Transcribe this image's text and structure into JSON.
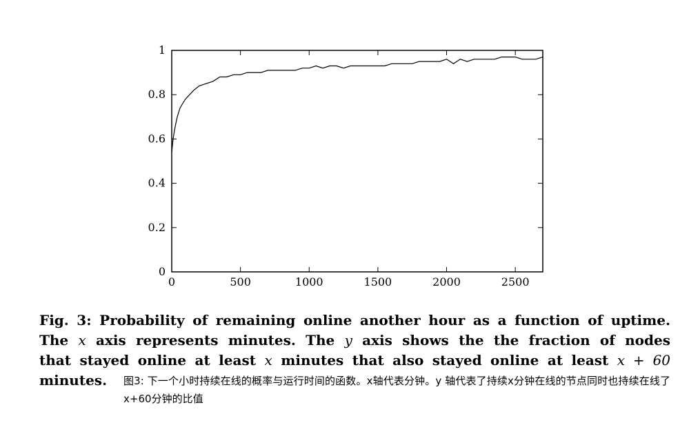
{
  "chart_data": {
    "type": "line",
    "title": "",
    "xlabel": "",
    "ylabel": "",
    "xlim": [
      0,
      2700
    ],
    "ylim": [
      0,
      1
    ],
    "x_ticks": [
      "0",
      "500",
      "1000",
      "1500",
      "2000",
      "2500"
    ],
    "y_ticks": [
      "0",
      "0.2",
      "0.4",
      "0.6",
      "0.8",
      "1"
    ],
    "grid": false,
    "series": [
      {
        "x": [
          0,
          10,
          20,
          30,
          40,
          60,
          80,
          100,
          130,
          160,
          200,
          250,
          300,
          350,
          400,
          450,
          500,
          550,
          600,
          650,
          700,
          750,
          800,
          850,
          900,
          950,
          1000,
          1050,
          1100,
          1150,
          1200,
          1250,
          1300,
          1350,
          1400,
          1450,
          1500,
          1550,
          1600,
          1650,
          1700,
          1750,
          1800,
          1850,
          1900,
          1950,
          2000,
          2050,
          2100,
          2150,
          2200,
          2250,
          2300,
          2350,
          2400,
          2450,
          2500,
          2550,
          2600,
          2650,
          2700
        ],
        "y": [
          0.54,
          0.6,
          0.64,
          0.67,
          0.7,
          0.74,
          0.76,
          0.78,
          0.8,
          0.82,
          0.84,
          0.85,
          0.86,
          0.88,
          0.88,
          0.89,
          0.89,
          0.9,
          0.9,
          0.9,
          0.91,
          0.91,
          0.91,
          0.91,
          0.91,
          0.92,
          0.92,
          0.93,
          0.92,
          0.93,
          0.93,
          0.92,
          0.93,
          0.93,
          0.93,
          0.93,
          0.93,
          0.93,
          0.94,
          0.94,
          0.94,
          0.94,
          0.95,
          0.95,
          0.95,
          0.95,
          0.96,
          0.94,
          0.96,
          0.95,
          0.96,
          0.96,
          0.96,
          0.96,
          0.97,
          0.97,
          0.97,
          0.96,
          0.96,
          0.96,
          0.97
        ]
      }
    ]
  },
  "caption": {
    "line1": "Fig. 3: Probability of remaining online another hour as a function of uptime.",
    "line2_a": "The",
    "line2_x": "x",
    "line2_b": "axis represents minutes. The",
    "line2_y": "y",
    "line2_c": "axis shows the the fraction of nodes",
    "line3_a": "that stayed online at least",
    "line3_x": "x",
    "line3_b": "minutes that also stayed online at least",
    "line3_expr": "x + 60",
    "line4": "minutes.",
    "translation": "图3: 下一个小时持续在线的概率与运行时间的函数。x轴代表分钟。y 轴代表了持续x分钟在线的节点同时也持续在线了x+60分钟的比值"
  }
}
